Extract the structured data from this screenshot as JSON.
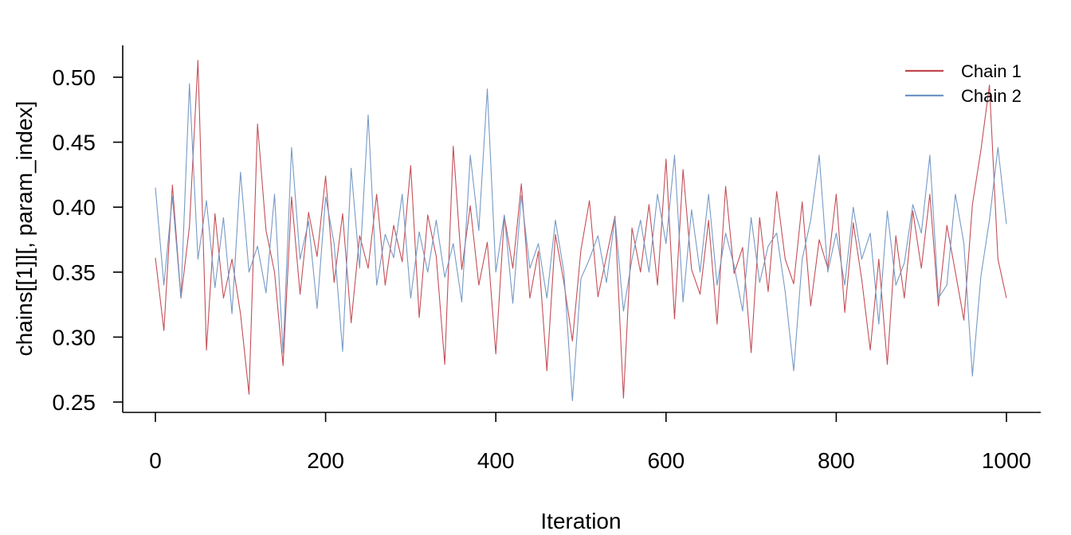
{
  "chart_data": {
    "type": "line",
    "title": "",
    "xlabel": "Iteration",
    "ylabel": "chains[[1]][, param_index]",
    "xlim": [
      0,
      1000
    ],
    "ylim": [
      0.25,
      0.52
    ],
    "x_ticks": [
      0,
      200,
      400,
      600,
      800,
      1000
    ],
    "x_tick_labels": [
      "0",
      "200",
      "400",
      "600",
      "800",
      "1000"
    ],
    "y_ticks": [
      0.25,
      0.3,
      0.35,
      0.4,
      0.45,
      0.5
    ],
    "y_tick_labels": [
      "0.25",
      "0.30",
      "0.35",
      "0.40",
      "0.45",
      "0.50"
    ],
    "grid": false,
    "legend": {
      "position": "top-right",
      "entries": [
        "Chain 1",
        "Chain 2"
      ]
    },
    "x": [
      0,
      10,
      20,
      30,
      40,
      50,
      60,
      70,
      80,
      90,
      100,
      110,
      120,
      130,
      140,
      150,
      160,
      170,
      180,
      190,
      200,
      210,
      220,
      230,
      240,
      250,
      260,
      270,
      280,
      290,
      300,
      310,
      320,
      330,
      340,
      350,
      360,
      370,
      380,
      390,
      400,
      410,
      420,
      430,
      440,
      450,
      460,
      470,
      480,
      490,
      500,
      510,
      520,
      530,
      540,
      550,
      560,
      570,
      580,
      590,
      600,
      610,
      620,
      630,
      640,
      650,
      660,
      670,
      680,
      690,
      700,
      710,
      720,
      730,
      740,
      750,
      760,
      770,
      780,
      790,
      800,
      810,
      820,
      830,
      840,
      850,
      860,
      870,
      880,
      890,
      900,
      910,
      920,
      930,
      940,
      950,
      960,
      970,
      980,
      990,
      1000
    ],
    "series": [
      {
        "name": "Chain 1",
        "color": "#c0464f",
        "values": [
          0.361,
          0.305,
          0.417,
          0.33,
          0.385,
          0.513,
          0.29,
          0.395,
          0.33,
          0.36,
          0.318,
          0.256,
          0.464,
          0.382,
          0.35,
          0.278,
          0.408,
          0.333,
          0.396,
          0.362,
          0.424,
          0.342,
          0.395,
          0.311,
          0.378,
          0.353,
          0.41,
          0.34,
          0.386,
          0.358,
          0.432,
          0.315,
          0.394,
          0.362,
          0.279,
          0.447,
          0.352,
          0.401,
          0.34,
          0.373,
          0.287,
          0.393,
          0.353,
          0.418,
          0.33,
          0.366,
          0.274,
          0.379,
          0.342,
          0.297,
          0.367,
          0.405,
          0.331,
          0.362,
          0.393,
          0.253,
          0.384,
          0.35,
          0.402,
          0.34,
          0.437,
          0.314,
          0.429,
          0.352,
          0.333,
          0.39,
          0.31,
          0.416,
          0.349,
          0.369,
          0.288,
          0.392,
          0.335,
          0.412,
          0.36,
          0.341,
          0.404,
          0.324,
          0.375,
          0.353,
          0.41,
          0.319,
          0.388,
          0.344,
          0.29,
          0.36,
          0.279,
          0.378,
          0.33,
          0.397,
          0.353,
          0.41,
          0.324,
          0.386,
          0.35,
          0.313,
          0.402,
          0.444,
          0.494,
          0.36,
          0.33
        ]
      },
      {
        "name": "Chain 2",
        "color": "#6f95c3",
        "values": [
          0.415,
          0.34,
          0.408,
          0.33,
          0.495,
          0.36,
          0.405,
          0.338,
          0.392,
          0.318,
          0.427,
          0.35,
          0.37,
          0.334,
          0.41,
          0.288,
          0.446,
          0.36,
          0.389,
          0.322,
          0.408,
          0.372,
          0.289,
          0.43,
          0.353,
          0.471,
          0.34,
          0.379,
          0.361,
          0.41,
          0.33,
          0.381,
          0.35,
          0.39,
          0.346,
          0.372,
          0.327,
          0.44,
          0.382,
          0.491,
          0.35,
          0.394,
          0.326,
          0.409,
          0.353,
          0.372,
          0.33,
          0.39,
          0.35,
          0.251,
          0.345,
          0.36,
          0.378,
          0.342,
          0.392,
          0.32,
          0.36,
          0.39,
          0.35,
          0.41,
          0.372,
          0.44,
          0.327,
          0.398,
          0.35,
          0.41,
          0.34,
          0.38,
          0.355,
          0.32,
          0.392,
          0.342,
          0.37,
          0.38,
          0.335,
          0.274,
          0.36,
          0.39,
          0.44,
          0.35,
          0.38,
          0.34,
          0.4,
          0.36,
          0.38,
          0.31,
          0.397,
          0.34,
          0.357,
          0.402,
          0.38,
          0.44,
          0.33,
          0.34,
          0.41,
          0.372,
          0.27,
          0.347,
          0.39,
          0.446,
          0.387
        ]
      }
    ]
  }
}
